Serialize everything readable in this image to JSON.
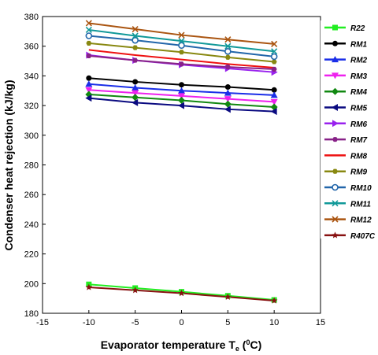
{
  "chart_data": {
    "type": "line",
    "xlabel": "Evaporator temperature T",
    "xlabel_sub": "e",
    "xlabel_open": " (",
    "xlabel_sup": "0",
    "xlabel_close": "C)",
    "ylabel": "Condenser heat rejection (kJ/kg)",
    "xlim": [
      -15,
      15
    ],
    "ylim": [
      180,
      380
    ],
    "xticks": [
      -15,
      -10,
      -5,
      0,
      5,
      10,
      15
    ],
    "yticks": [
      180,
      200,
      220,
      240,
      260,
      280,
      300,
      320,
      340,
      360,
      380
    ],
    "grid": false,
    "legend_position": "right",
    "x": [
      -10,
      -5,
      0,
      5,
      10
    ],
    "series": [
      {
        "name": "R22",
        "color": "#22ee22",
        "marker": "square",
        "values": [
          199.5,
          197.0,
          194.5,
          191.8,
          189.0
        ]
      },
      {
        "name": "RM1",
        "color": "#000000",
        "marker": "circle",
        "values": [
          338.5,
          336.0,
          334.0,
          332.5,
          330.5
        ]
      },
      {
        "name": "RM2",
        "color": "#1a2ee8",
        "marker": "triangle-up",
        "values": [
          334.5,
          332.0,
          330.0,
          328.5,
          327.0
        ]
      },
      {
        "name": "RM3",
        "color": "#ee22ee",
        "marker": "triangle-down",
        "values": [
          330.5,
          328.5,
          326.5,
          324.5,
          322.5
        ]
      },
      {
        "name": "RM4",
        "color": "#118811",
        "marker": "diamond",
        "values": [
          327.5,
          325.5,
          323.5,
          321.0,
          319.0
        ]
      },
      {
        "name": "RM5",
        "color": "#0a0a80",
        "marker": "triangle-left",
        "values": [
          325.0,
          322.0,
          320.0,
          317.5,
          316.0
        ]
      },
      {
        "name": "RM6",
        "color": "#9922ee",
        "marker": "triangle-right",
        "values": [
          354.0,
          350.5,
          347.5,
          345.0,
          342.5
        ]
      },
      {
        "name": "RM7",
        "color": "#882288",
        "marker": "hexagon",
        "values": [
          353.5,
          350.5,
          348.0,
          346.0,
          344.5
        ]
      },
      {
        "name": "RM8",
        "color": "#ee1111",
        "marker": "none",
        "values": [
          357.5,
          354.0,
          351.0,
          348.0,
          345.5
        ]
      },
      {
        "name": "RM9",
        "color": "#888811",
        "marker": "hexagon",
        "values": [
          362.0,
          359.0,
          356.0,
          352.5,
          349.5
        ]
      },
      {
        "name": "RM10",
        "color": "#2266aa",
        "marker": "circle-open",
        "values": [
          367.0,
          364.0,
          360.5,
          356.5,
          353.0
        ]
      },
      {
        "name": "RM11",
        "color": "#119999",
        "marker": "x",
        "values": [
          371.0,
          367.0,
          363.5,
          360.0,
          356.5
        ]
      },
      {
        "name": "RM12",
        "color": "#aa5511",
        "marker": "x",
        "values": [
          375.5,
          371.5,
          367.5,
          364.5,
          361.5
        ]
      },
      {
        "name": "R407C",
        "color": "#881111",
        "marker": "star",
        "values": [
          197.5,
          195.5,
          193.5,
          191.0,
          188.5
        ]
      }
    ]
  }
}
